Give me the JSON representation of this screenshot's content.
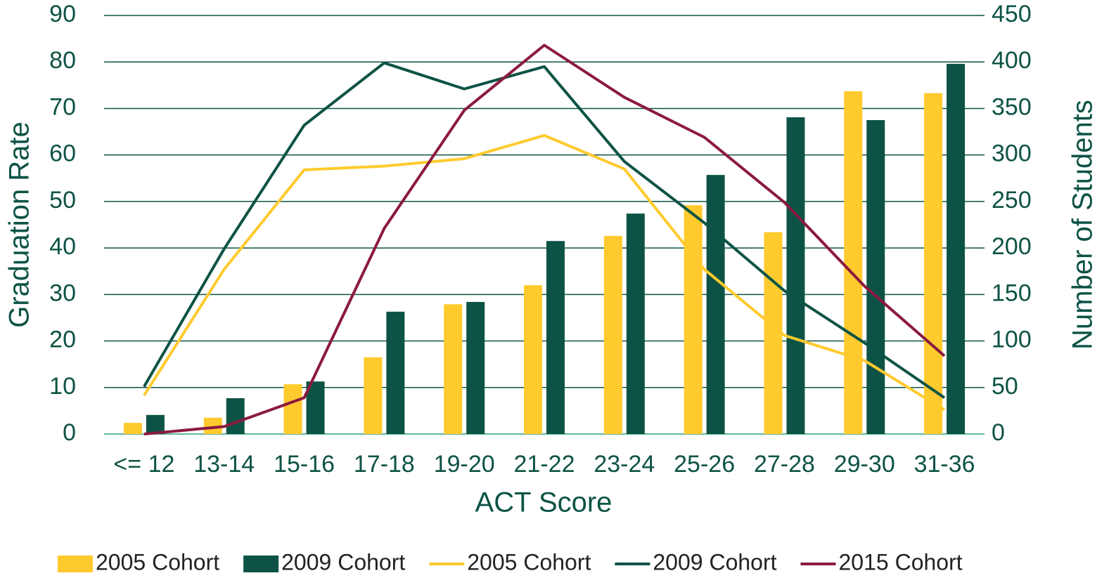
{
  "chart_data": {
    "type": "combo",
    "x_label": "ACT Score",
    "y_label": "Graduation Rate",
    "y2_label": "Number of Students",
    "categories": [
      "<= 12",
      "13-14",
      "15-16",
      "17-18",
      "19-20",
      "21-22",
      "23-24",
      "25-26",
      "27-28",
      "29-30",
      "31-36"
    ],
    "series": [
      {
        "name": "2005 Cohort",
        "type": "bar",
        "color": "#ffca2e",
        "values": [
          2.4,
          3.5,
          10.7,
          16.5,
          27.9,
          32,
          42.6,
          49.2,
          43.4,
          73.7,
          73.3
        ]
      },
      {
        "name": "2009 Cohort",
        "type": "bar",
        "color": "#0d5345",
        "values": [
          4.1,
          7.7,
          11.3,
          26.3,
          28.4,
          41.5,
          47.4,
          55.7,
          68.1,
          67.5,
          79.6
        ]
      },
      {
        "name": "2005 Cohort",
        "type": "line",
        "axis": "y2",
        "color": "#ffca2e",
        "values": [
          41.5,
          177,
          284,
          288,
          296,
          321,
          285,
          177,
          106,
          79,
          26
        ]
      },
      {
        "name": "2009 Cohort",
        "type": "line",
        "axis": "y2",
        "color": "#0d5345",
        "values": [
          51,
          199,
          332,
          399,
          371,
          395,
          293,
          227,
          154,
          98,
          39
        ]
      },
      {
        "name": "2015 Cohort",
        "type": "line",
        "axis": "y2",
        "color": "#8b1a3f",
        "values": [
          0,
          8,
          39,
          221,
          348,
          418,
          362,
          319,
          249,
          159,
          84
        ]
      }
    ],
    "ylim": [
      0,
      90
    ],
    "yticks": [
      0,
      10,
      20,
      30,
      40,
      50,
      60,
      70,
      80,
      90
    ],
    "y2lim": [
      0,
      450
    ],
    "y2ticks": [
      0,
      50,
      100,
      150,
      200,
      250,
      300,
      350,
      400,
      450
    ],
    "grid": true,
    "legend": "bottom"
  }
}
